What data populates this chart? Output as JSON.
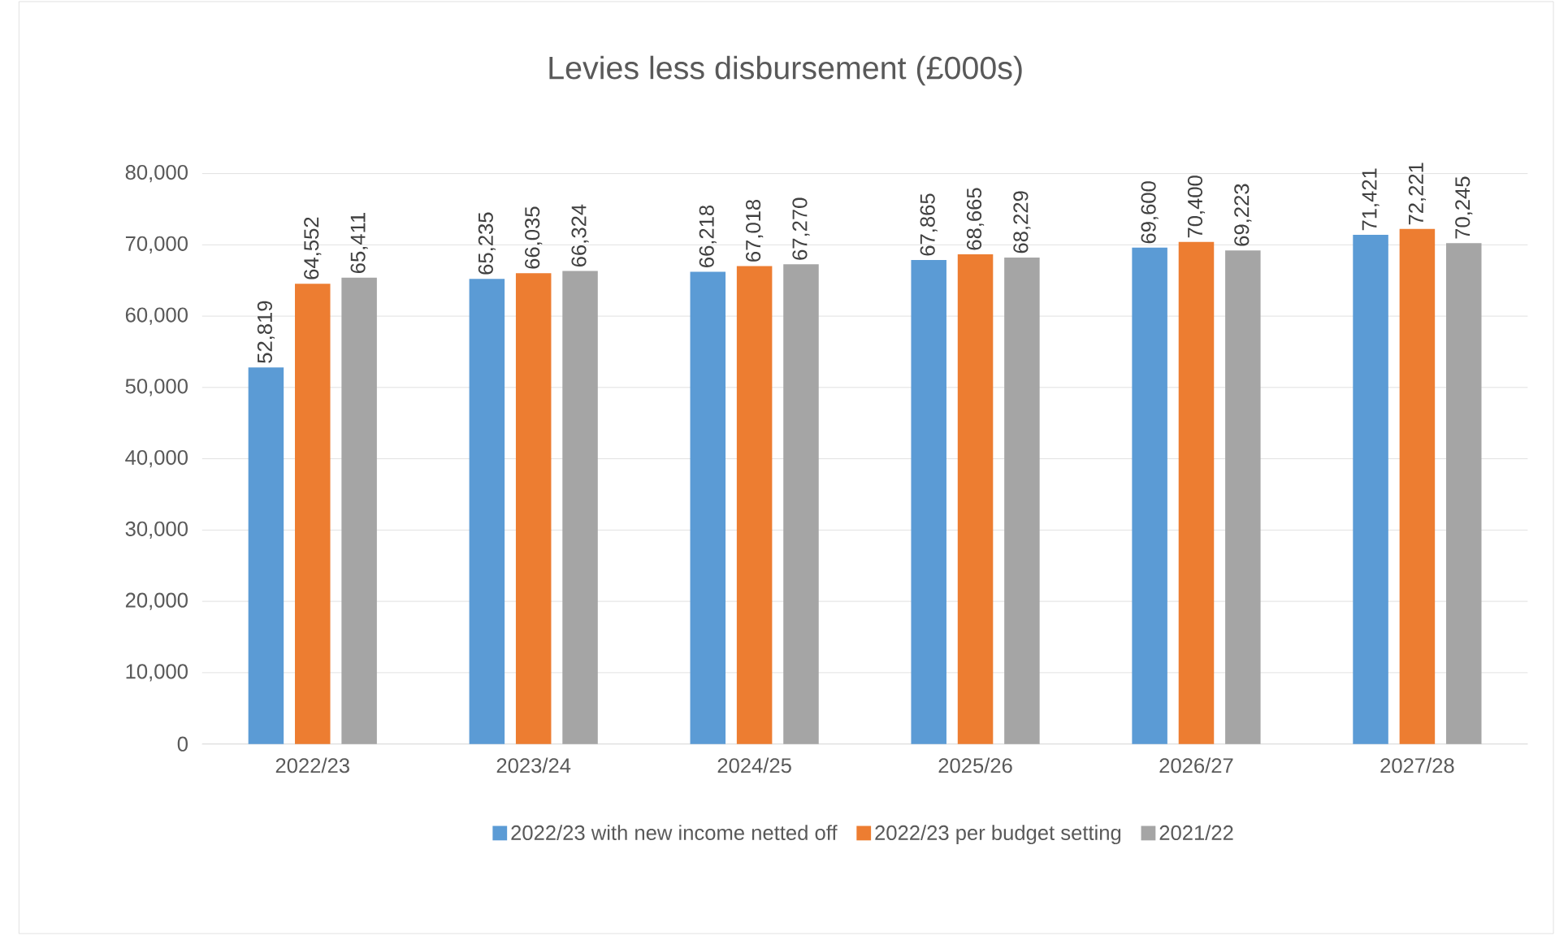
{
  "chart_data": {
    "type": "bar",
    "title": "Levies less disbursement (£000s)",
    "categories": [
      "2022/23",
      "2023/24",
      "2024/25",
      "2025/26",
      "2026/27",
      "2027/28"
    ],
    "series": [
      {
        "name": "2022/23 with new income netted off",
        "color": "#5b9bd5",
        "values": [
          52819,
          65235,
          66218,
          67865,
          69600,
          71421
        ],
        "value_labels": [
          "52,819",
          "65,235",
          "66,218",
          "67,865",
          "69,600",
          "71,421"
        ]
      },
      {
        "name": "2022/23 per budget setting",
        "color": "#ed7d31",
        "values": [
          64552,
          66035,
          67018,
          68665,
          70400,
          72221
        ],
        "value_labels": [
          "64,552",
          "66,035",
          "67,018",
          "68,665",
          "70,400",
          "72,221"
        ]
      },
      {
        "name": "2021/22",
        "color": "#a5a5a5",
        "values": [
          65411,
          66324,
          67270,
          68229,
          69223,
          70245
        ],
        "value_labels": [
          "65,411",
          "66,324",
          "67,270",
          "68,229",
          "69,223",
          "70,245"
        ]
      }
    ],
    "ylim": [
      0,
      80000
    ],
    "yticks": [
      {
        "value": 0,
        "label": "0"
      },
      {
        "value": 10000,
        "label": "10,000"
      },
      {
        "value": 20000,
        "label": "20,000"
      },
      {
        "value": 30000,
        "label": "30,000"
      },
      {
        "value": 40000,
        "label": "40,000"
      },
      {
        "value": 50000,
        "label": "50,000"
      },
      {
        "value": 60000,
        "label": "60,000"
      },
      {
        "value": 70000,
        "label": "70,000"
      },
      {
        "value": 80000,
        "label": "80,000"
      }
    ],
    "grid": "y",
    "legend": "bottom"
  }
}
